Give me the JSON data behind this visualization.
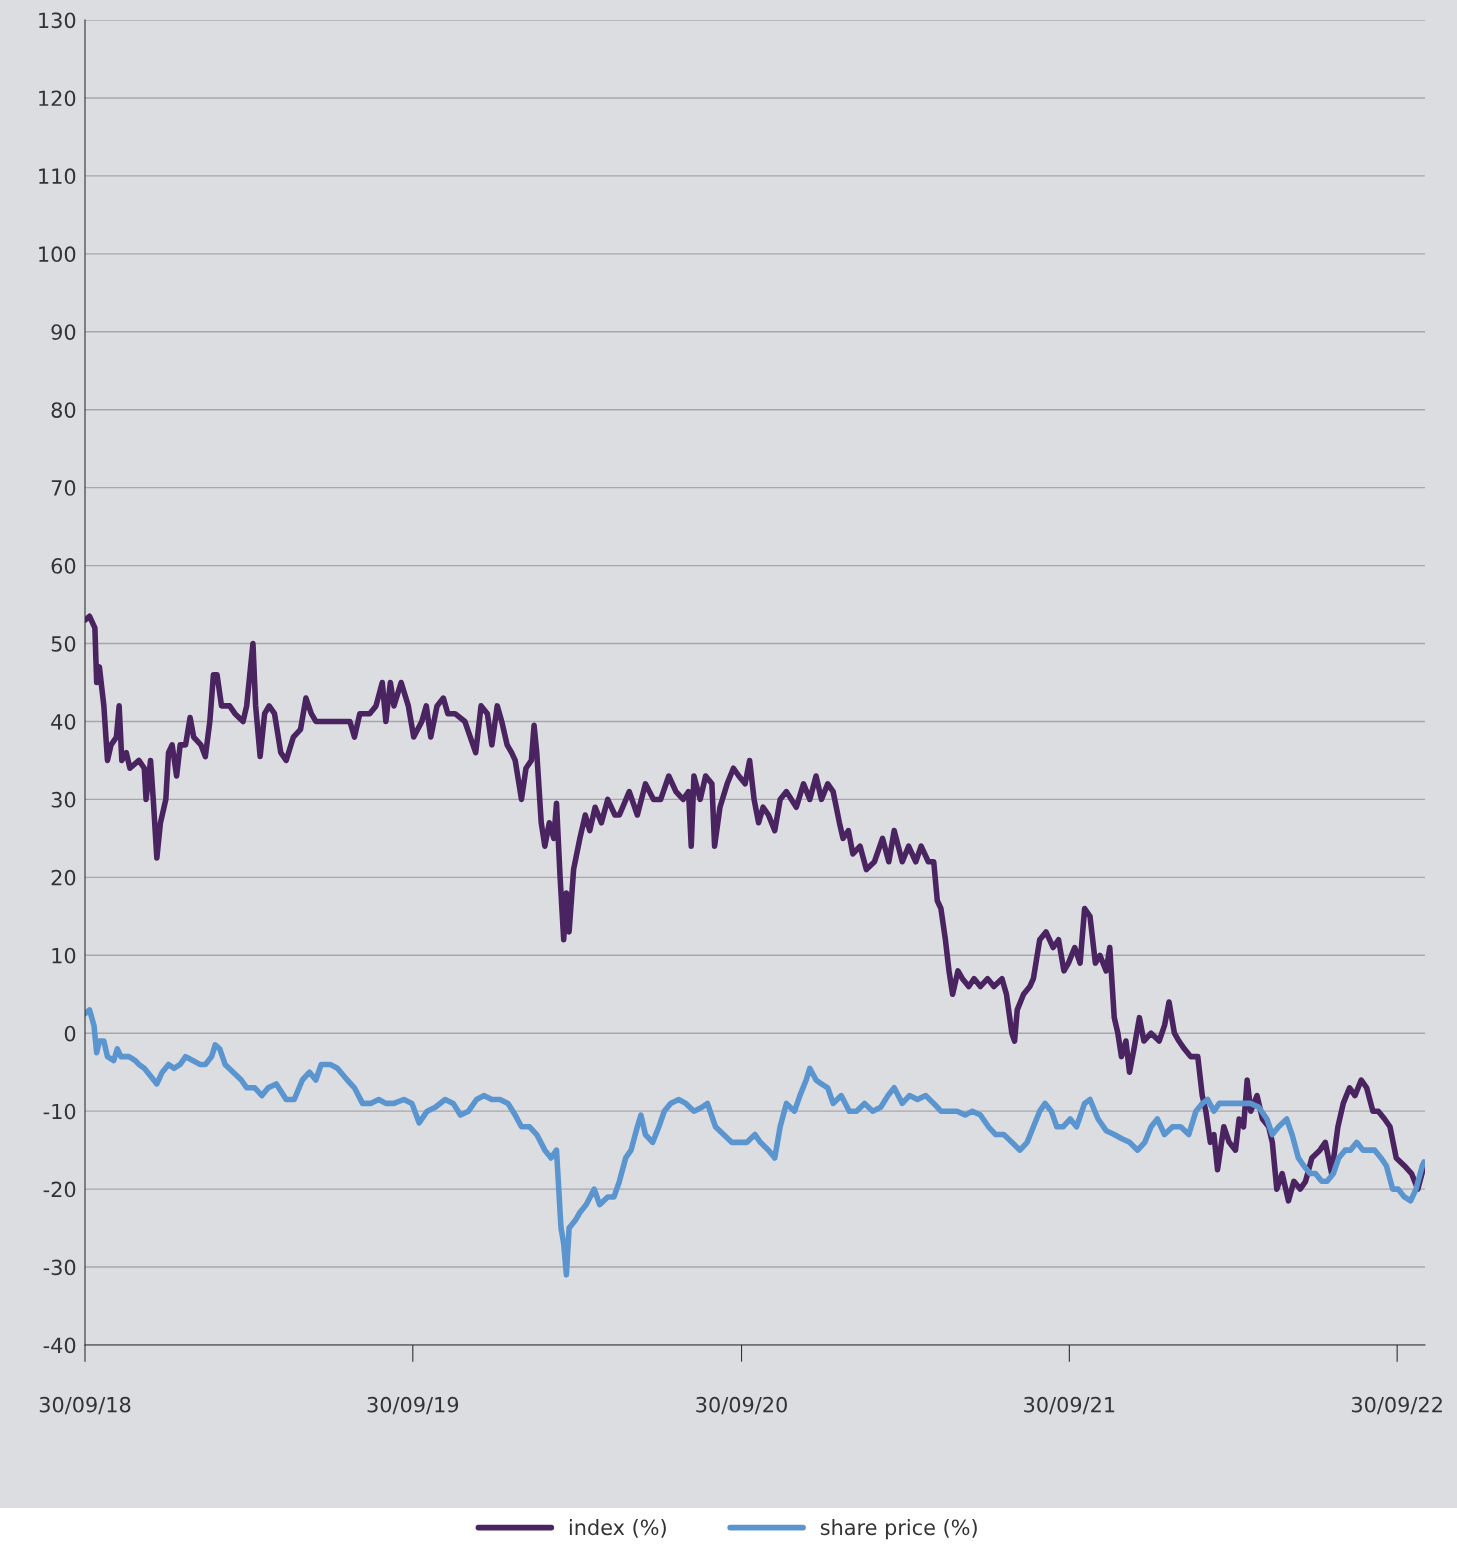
{
  "chart_data": {
    "type": "line",
    "xlim": [
      "2018-09-30",
      "2022-10-31"
    ],
    "ylim": [
      -40,
      130
    ],
    "xticks": [
      {
        "value": "2018-09-30",
        "label": "30/09/18"
      },
      {
        "value": "2019-09-30",
        "label": "30/09/19"
      },
      {
        "value": "2020-09-30",
        "label": "30/09/20"
      },
      {
        "value": "2021-09-30",
        "label": "30/09/21"
      },
      {
        "value": "2022-09-30",
        "label": "30/09/22"
      }
    ],
    "yticks": [
      -40,
      -30,
      -20,
      -10,
      0,
      10,
      20,
      30,
      40,
      50,
      60,
      70,
      80,
      90,
      100,
      110,
      120,
      130
    ],
    "grid": "y",
    "legend": "bottom",
    "line_style": "solid",
    "marker": "none",
    "series": [
      {
        "name": "index (%)",
        "color": "#4a2460",
        "x": [
          "2018-09-30",
          "2018-10-05",
          "2018-10-11",
          "2018-10-13",
          "2018-10-16",
          "2018-10-21",
          "2018-10-25",
          "2018-10-29",
          "2018-11-04",
          "2018-11-07",
          "2018-11-10",
          "2018-11-15",
          "2018-11-19",
          "2018-11-29",
          "2018-12-05",
          "2018-12-07",
          "2018-12-12",
          "2018-12-15",
          "2018-12-19",
          "2018-12-23",
          "2018-12-29",
          "2019-01-01",
          "2019-01-05",
          "2019-01-10",
          "2019-01-14",
          "2019-01-20",
          "2019-01-25",
          "2019-01-29",
          "2019-02-06",
          "2019-02-11",
          "2019-02-16",
          "2019-02-20",
          "2019-02-24",
          "2019-03-01",
          "2019-03-10",
          "2019-03-16",
          "2019-03-25",
          "2019-03-29",
          "2019-04-05",
          "2019-04-08",
          "2019-04-13",
          "2019-04-18",
          "2019-04-23",
          "2019-04-29",
          "2019-05-06",
          "2019-05-12",
          "2019-05-20",
          "2019-05-28",
          "2019-06-03",
          "2019-06-09",
          "2019-06-14",
          "2019-06-25",
          "2019-07-05",
          "2019-07-22",
          "2019-07-27",
          "2019-08-02",
          "2019-08-13",
          "2019-08-20",
          "2019-08-27",
          "2019-08-31",
          "2019-09-05",
          "2019-09-09",
          "2019-09-17",
          "2019-09-25",
          "2019-10-01",
          "2019-10-10",
          "2019-10-15",
          "2019-10-20",
          "2019-10-27",
          "2019-11-03",
          "2019-11-08",
          "2019-11-16",
          "2019-11-27",
          "2019-12-03",
          "2019-12-09",
          "2019-12-15",
          "2019-12-22",
          "2019-12-27",
          "2020-01-02",
          "2020-01-07",
          "2020-01-13",
          "2020-01-18",
          "2020-01-22",
          "2020-01-29",
          "2020-02-03",
          "2020-02-09",
          "2020-02-12",
          "2020-02-15",
          "2020-02-20",
          "2020-02-24",
          "2020-02-29",
          "2020-03-05",
          "2020-03-08",
          "2020-03-12",
          "2020-03-16",
          "2020-03-19",
          "2020-03-22",
          "2020-03-27",
          "2020-04-03",
          "2020-04-09",
          "2020-04-14",
          "2020-04-20",
          "2020-04-27",
          "2020-05-04",
          "2020-05-12",
          "2020-05-17",
          "2020-05-28",
          "2020-06-06",
          "2020-06-15",
          "2020-06-24",
          "2020-07-02",
          "2020-07-11",
          "2020-07-19",
          "2020-07-27",
          "2020-08-02",
          "2020-08-05",
          "2020-08-08",
          "2020-08-15",
          "2020-08-21",
          "2020-08-28",
          "2020-08-31",
          "2020-09-06",
          "2020-09-14",
          "2020-09-21",
          "2020-09-27",
          "2020-10-04",
          "2020-10-09",
          "2020-10-14",
          "2020-10-19",
          "2020-10-24",
          "2020-10-30",
          "2020-11-06",
          "2020-11-12",
          "2020-11-19",
          "2020-11-30",
          "2020-12-08",
          "2020-12-15",
          "2020-12-22",
          "2020-12-28",
          "2021-01-04",
          "2021-01-10",
          "2021-01-17",
          "2021-01-21",
          "2021-01-27",
          "2021-02-01",
          "2021-02-09",
          "2021-02-16",
          "2021-02-25",
          "2021-03-06",
          "2021-03-13",
          "2021-03-19",
          "2021-03-28",
          "2021-04-04",
          "2021-04-12",
          "2021-04-18",
          "2021-04-26",
          "2021-05-02",
          "2021-05-06",
          "2021-05-10",
          "2021-05-15",
          "2021-05-19",
          "2021-05-23",
          "2021-05-29",
          "2021-06-03",
          "2021-06-10",
          "2021-06-16",
          "2021-06-23",
          "2021-07-01",
          "2021-07-08",
          "2021-07-17",
          "2021-07-22",
          "2021-07-28",
          "2021-07-31",
          "2021-08-03",
          "2021-08-10",
          "2021-08-17",
          "2021-08-21",
          "2021-08-28",
          "2021-09-04",
          "2021-09-12",
          "2021-09-18",
          "2021-09-24",
          "2021-09-29",
          "2021-10-06",
          "2021-10-12",
          "2021-10-17",
          "2021-10-23",
          "2021-10-29",
          "2021-11-03",
          "2021-11-10",
          "2021-11-14",
          "2021-11-19",
          "2021-11-23",
          "2021-11-27",
          "2021-12-02",
          "2021-12-06",
          "2021-12-11",
          "2021-12-17",
          "2021-12-22",
          "2021-12-30",
          "2022-01-08",
          "2022-01-14",
          "2022-01-19",
          "2022-01-25",
          "2022-01-30",
          "2022-02-05",
          "2022-02-12",
          "2022-02-20",
          "2022-02-25",
          "2022-03-01",
          "2022-03-06",
          "2022-03-10",
          "2022-03-14",
          "2022-03-21",
          "2022-03-27",
          "2022-04-03",
          "2022-04-07",
          "2022-04-12",
          "2022-04-16",
          "2022-04-20",
          "2022-04-27",
          "2022-05-03",
          "2022-05-10",
          "2022-05-14",
          "2022-05-19",
          "2022-05-25",
          "2022-06-01",
          "2022-06-07",
          "2022-06-14",
          "2022-06-20",
          "2022-06-27",
          "2022-07-06",
          "2022-07-12",
          "2022-07-19",
          "2022-07-26",
          "2022-08-01",
          "2022-08-08",
          "2022-08-14",
          "2022-08-21",
          "2022-08-27",
          "2022-09-03",
          "2022-09-09",
          "2022-09-16",
          "2022-09-22",
          "2022-09-29",
          "2022-10-08",
          "2022-10-16",
          "2022-10-23",
          "2022-10-30"
        ],
        "values": [
          53,
          53.5,
          52,
          45,
          47,
          42,
          35,
          37,
          38,
          42,
          35,
          36,
          34,
          35,
          34,
          30,
          35,
          30,
          22.5,
          27,
          30,
          36,
          37,
          33,
          37,
          37,
          40.5,
          38,
          37,
          35.5,
          40,
          46,
          46,
          42,
          42,
          41,
          40,
          42,
          50,
          42,
          35.5,
          41,
          42,
          41,
          36,
          35,
          38,
          39,
          43,
          41,
          40,
          40,
          40,
          40,
          38,
          41,
          41,
          42,
          45,
          40,
          45,
          42,
          45,
          42,
          38,
          40,
          42,
          38,
          42,
          43,
          41,
          41,
          40,
          38,
          36,
          42,
          41,
          37,
          42,
          40,
          37,
          36,
          35,
          30,
          34,
          35,
          39.5,
          36,
          27,
          24,
          27,
          25,
          29.5,
          20,
          12,
          18,
          13,
          21,
          25,
          28,
          26,
          29,
          27,
          30,
          28,
          28,
          31,
          28,
          32,
          30,
          30,
          33,
          31,
          30,
          31,
          24,
          33,
          30,
          33,
          32,
          24,
          29,
          32,
          34,
          33,
          32,
          35,
          30,
          27,
          29,
          28,
          26,
          30,
          31,
          29,
          32,
          30,
          33,
          30,
          32,
          31,
          27,
          25,
          26,
          23,
          24,
          21,
          22,
          25,
          22,
          26,
          22,
          24,
          22,
          24,
          22,
          22,
          17,
          16,
          12,
          8,
          5,
          8,
          7,
          6,
          7,
          6,
          7,
          6,
          7,
          5,
          0,
          -1,
          3,
          5,
          6,
          7,
          12,
          13,
          11,
          12,
          8,
          9,
          11,
          9,
          16,
          15,
          9,
          10,
          8,
          11,
          2,
          0,
          -3,
          -1,
          -5,
          -2,
          2,
          -1,
          0,
          -1,
          1,
          4,
          0,
          -1,
          -2,
          -3,
          -3,
          -8,
          -10,
          -14,
          -13,
          -17.5,
          -12,
          -14,
          -15,
          -11,
          -12,
          -6,
          -10,
          -8,
          -11,
          -12,
          -14,
          -20,
          -18,
          -21.5,
          -19,
          -20,
          -19,
          -16,
          -15,
          -14,
          -18,
          -12,
          -9,
          -7,
          -8,
          -6,
          -7,
          -10,
          -10,
          -11,
          -12,
          -16,
          -17,
          -18,
          -20,
          -17
        ]
      },
      {
        "name": "share price (%)",
        "color": "#5b95d0",
        "x": [
          "2018-09-30",
          "2018-10-05",
          "2018-10-10",
          "2018-10-13",
          "2018-10-16",
          "2018-10-21",
          "2018-10-25",
          "2018-11-01",
          "2018-11-05",
          "2018-11-09",
          "2018-11-18",
          "2018-11-25",
          "2018-11-29",
          "2018-12-05",
          "2018-12-12",
          "2018-12-19",
          "2018-12-25",
          "2019-01-01",
          "2019-01-07",
          "2019-01-14",
          "2019-01-20",
          "2019-01-28",
          "2019-02-05",
          "2019-02-11",
          "2019-02-18",
          "2019-02-22",
          "2019-02-27",
          "2019-03-05",
          "2019-03-14",
          "2019-03-23",
          "2019-03-29",
          "2019-04-07",
          "2019-04-15",
          "2019-04-22",
          "2019-05-01",
          "2019-05-12",
          "2019-05-21",
          "2019-05-30",
          "2019-06-07",
          "2019-06-14",
          "2019-06-20",
          "2019-06-30",
          "2019-07-08",
          "2019-07-19",
          "2019-07-27",
          "2019-08-05",
          "2019-08-14",
          "2019-08-23",
          "2019-08-31",
          "2019-09-09",
          "2019-09-20",
          "2019-09-29",
          "2019-10-07",
          "2019-10-16",
          "2019-10-25",
          "2019-11-05",
          "2019-11-14",
          "2019-11-22",
          "2019-12-01",
          "2019-12-10",
          "2019-12-18",
          "2019-12-27",
          "2020-01-05",
          "2020-01-14",
          "2020-01-22",
          "2020-01-29",
          "2020-02-07",
          "2020-02-15",
          "2020-02-24",
          "2020-03-02",
          "2020-03-08",
          "2020-03-13",
          "2020-03-16",
          "2020-03-19",
          "2020-03-22",
          "2020-03-29",
          "2020-04-03",
          "2020-04-10",
          "2020-04-19",
          "2020-04-25",
          "2020-05-04",
          "2020-05-11",
          "2020-05-17",
          "2020-05-24",
          "2020-05-30",
          "2020-06-06",
          "2020-06-10",
          "2020-06-15",
          "2020-06-23",
          "2020-06-30",
          "2020-07-06",
          "2020-07-13",
          "2020-07-22",
          "2020-07-30",
          "2020-08-08",
          "2020-08-17",
          "2020-08-23",
          "2020-09-01",
          "2020-09-10",
          "2020-09-19",
          "2020-09-27",
          "2020-10-06",
          "2020-10-15",
          "2020-10-21",
          "2020-10-30",
          "2020-11-06",
          "2020-11-12",
          "2020-11-19",
          "2020-11-28",
          "2020-12-04",
          "2020-12-11",
          "2020-12-15",
          "2020-12-22",
          "2020-12-28",
          "2021-01-04",
          "2021-01-10",
          "2021-01-19",
          "2021-01-28",
          "2021-02-05",
          "2021-02-14",
          "2021-02-23",
          "2021-03-04",
          "2021-03-12",
          "2021-03-19",
          "2021-03-28",
          "2021-04-05",
          "2021-04-14",
          "2021-04-23",
          "2021-05-02",
          "2021-05-10",
          "2021-05-19",
          "2021-05-28",
          "2021-06-06",
          "2021-06-14",
          "2021-06-23",
          "2021-07-02",
          "2021-07-10",
          "2021-07-19",
          "2021-07-28",
          "2021-08-06",
          "2021-08-14",
          "2021-08-21",
          "2021-08-28",
          "2021-09-03",
          "2021-09-10",
          "2021-09-16",
          "2021-09-23",
          "2021-10-01",
          "2021-10-08",
          "2021-10-17",
          "2021-10-23",
          "2021-11-01",
          "2021-11-10",
          "2021-11-19",
          "2021-11-27",
          "2021-12-06",
          "2021-12-15",
          "2021-12-23",
          "2021-12-30",
          "2022-01-06",
          "2022-01-14",
          "2022-01-23",
          "2022-02-01",
          "2022-02-10",
          "2022-02-18",
          "2022-02-25",
          "2022-03-03",
          "2022-03-10",
          "2022-03-16",
          "2022-03-25",
          "2022-04-03",
          "2022-04-12",
          "2022-04-20",
          "2022-04-29",
          "2022-05-08",
          "2022-05-14",
          "2022-05-21",
          "2022-05-30",
          "2022-06-05",
          "2022-06-12",
          "2022-06-18",
          "2022-06-25",
          "2022-07-01",
          "2022-07-08",
          "2022-07-14",
          "2022-07-21",
          "2022-07-27",
          "2022-08-03",
          "2022-08-09",
          "2022-08-16",
          "2022-08-23",
          "2022-08-29",
          "2022-09-05",
          "2022-09-12",
          "2022-09-18",
          "2022-09-25",
          "2022-10-01",
          "2022-10-08",
          "2022-10-15",
          "2022-10-21",
          "2022-10-28",
          "2022-10-30"
        ],
        "values": [
          2.5,
          3,
          1,
          -2.5,
          -1,
          -1,
          -3,
          -3.5,
          -2,
          -3,
          -3,
          -3.5,
          -4,
          -4.5,
          -5.5,
          -6.5,
          -5,
          -4,
          -4.5,
          -4,
          -3,
          -3.5,
          -4,
          -4,
          -3,
          -1.5,
          -2,
          -4,
          -5,
          -6,
          -7,
          -7,
          -8,
          -7,
          -6.5,
          -8.5,
          -8.5,
          -6,
          -5,
          -6,
          -4,
          -4,
          -4.5,
          -6,
          -7,
          -9,
          -9,
          -8.5,
          -9,
          -9,
          -8.5,
          -9,
          -11.5,
          -10,
          -9.5,
          -8.5,
          -9,
          -10.5,
          -10,
          -8.5,
          -8,
          -8.5,
          -8.5,
          -9,
          -10.5,
          -12,
          -12,
          -13,
          -15,
          -16,
          -15,
          -25,
          -27,
          -31,
          -25,
          -24,
          -23,
          -22,
          -20,
          -22,
          -21,
          -21,
          -19,
          -16,
          -15,
          -12,
          -10.5,
          -13,
          -14,
          -12,
          -10,
          -9,
          -8.5,
          -9,
          -10,
          -9.5,
          -9,
          -12,
          -13,
          -14,
          -14,
          -14,
          -13,
          -14,
          -15,
          -16,
          -12,
          -9,
          -10,
          -8,
          -6,
          -4.5,
          -6,
          -6.5,
          -7,
          -9,
          -8,
          -10,
          -10,
          -9,
          -10,
          -9.5,
          -8,
          -7,
          -9,
          -8,
          -8.5,
          -8,
          -9,
          -10,
          -10,
          -10,
          -10.5,
          -10,
          -10.5,
          -12,
          -13,
          -13,
          -14,
          -15,
          -14,
          -12,
          -10,
          -9,
          -10,
          -12,
          -12,
          -11,
          -12,
          -9,
          -8.5,
          -11,
          -12.5,
          -13,
          -13.5,
          -14,
          -15,
          -14,
          -12,
          -11,
          -13,
          -12,
          -12,
          -13,
          -10,
          -9,
          -8.5,
          -10,
          -9,
          -9,
          -9,
          -9,
          -9,
          -9.5,
          -11,
          -13,
          -12,
          -11,
          -13,
          -16,
          -17,
          -18,
          -18,
          -19,
          -19,
          -18,
          -16,
          -15,
          -15,
          -14,
          -15,
          -15,
          -15,
          -16,
          -17,
          -20,
          -20,
          -21,
          -21.5,
          -20,
          -17,
          -16.5
        ]
      }
    ]
  }
}
